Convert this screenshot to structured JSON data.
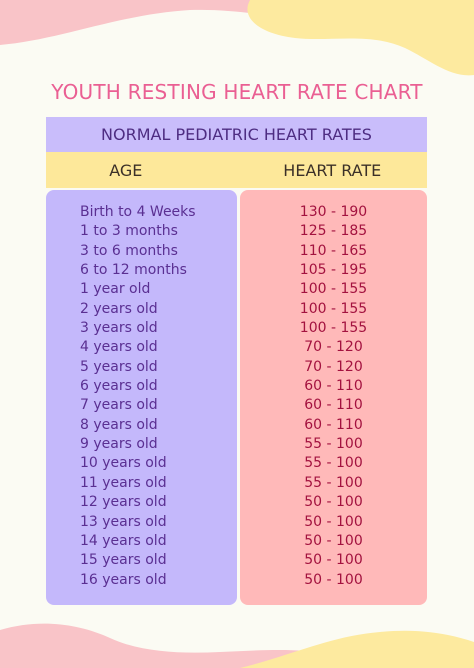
{
  "title": "YOUTH RESTING HEART RATE CHART",
  "subtitle": "NORMAL PEDIATRIC HEART RATES",
  "columns": {
    "age": "AGE",
    "heart_rate": "HEART RATE"
  },
  "colors": {
    "background": "#fbfbf3",
    "title": "#ea5f93",
    "subheader_bg": "#c9bdfb",
    "column_header_bg": "#fde89a",
    "age_panel_bg": "#c4b8fb",
    "heart_rate_panel_bg": "#ffb9b9",
    "decor_pink": "#f9c4c8",
    "decor_yellow": "#fdea9f"
  },
  "rows": [
    {
      "age": "Birth to 4 Weeks",
      "rate": "130 - 190"
    },
    {
      "age": "1 to 3 months",
      "rate": "125 - 185"
    },
    {
      "age": "3 to 6 months",
      "rate": "110 - 165"
    },
    {
      "age": "6 to 12 months",
      "rate": "105 - 195"
    },
    {
      "age": "1 year old",
      "rate": "100 - 155"
    },
    {
      "age": "2 years old",
      "rate": "100 - 155"
    },
    {
      "age": "3 years old",
      "rate": "100 - 155"
    },
    {
      "age": "4 years old",
      "rate": "70 - 120"
    },
    {
      "age": "5 years old",
      "rate": "70 - 120"
    },
    {
      "age": "6 years old",
      "rate": "60 - 110"
    },
    {
      "age": "7 years old",
      "rate": "60 - 110"
    },
    {
      "age": "8 years old",
      "rate": "60 - 110"
    },
    {
      "age": "9 years old",
      "rate": "55 - 100"
    },
    {
      "age": "10 years old",
      "rate": "55 - 100"
    },
    {
      "age": "11 years old",
      "rate": "55 - 100"
    },
    {
      "age": "12 years old",
      "rate": "50 - 100"
    },
    {
      "age": "13 years old",
      "rate": "50 - 100"
    },
    {
      "age": "14 years old",
      "rate": "50 - 100"
    },
    {
      "age": "15 years old",
      "rate": "50 - 100"
    },
    {
      "age": "16 years old",
      "rate": "50 - 100"
    }
  ]
}
